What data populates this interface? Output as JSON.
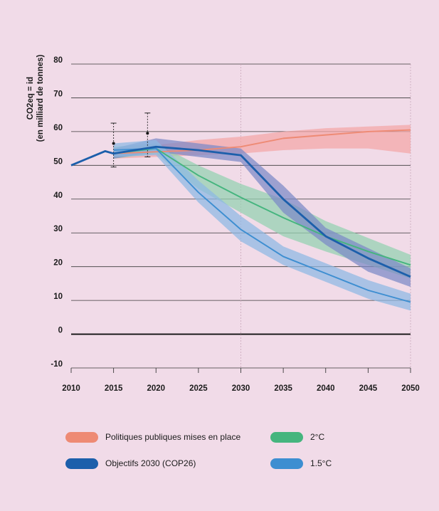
{
  "chart_data": {
    "type": "line",
    "ylabel": "CO2eq = id",
    "ylabel_sub": "(en milliard de tonnes)",
    "xlim": [
      2010,
      2050
    ],
    "ylim": [
      -10,
      80
    ],
    "x_ticks": [
      "2010",
      "2015",
      "2020",
      "2025",
      "2030",
      "2035",
      "2040",
      "2045",
      "2050"
    ],
    "y_ticks": [
      "80",
      "70",
      "60",
      "50",
      "40",
      "30",
      "20",
      "10",
      "0",
      "-10"
    ],
    "grid": "horizontal",
    "legend_position": "bottom",
    "series": [
      {
        "name": "Politiques publiques mises en place",
        "color": "#ee8a74",
        "band_color": "#f4a6a6",
        "points": [
          [
            2015,
            53.5
          ],
          [
            2020,
            54
          ],
          [
            2025,
            54.5
          ],
          [
            2030,
            55.5
          ],
          [
            2035,
            58
          ],
          [
            2040,
            59
          ],
          [
            2045,
            60
          ],
          [
            2050,
            60.5
          ]
        ],
        "band": [
          [
            2015,
            52,
            55
          ],
          [
            2020,
            52.5,
            56
          ],
          [
            2025,
            53,
            57.5
          ],
          [
            2030,
            53.5,
            58.5
          ],
          [
            2035,
            54.5,
            60
          ],
          [
            2040,
            55,
            61
          ],
          [
            2045,
            55,
            61.5
          ],
          [
            2050,
            53.5,
            62
          ]
        ]
      },
      {
        "name": "2°C",
        "color": "#45b57e",
        "band_color": "#93d1b0",
        "points": [
          [
            2015,
            53.5
          ],
          [
            2020,
            55
          ],
          [
            2025,
            47
          ],
          [
            2030,
            40.5
          ],
          [
            2035,
            34.5
          ],
          [
            2040,
            29
          ],
          [
            2045,
            24.5
          ],
          [
            2050,
            20.5
          ]
        ],
        "band": [
          [
            2015,
            52,
            55.5
          ],
          [
            2020,
            53.5,
            56.5
          ],
          [
            2025,
            43,
            50
          ],
          [
            2030,
            36,
            44.5
          ],
          [
            2035,
            29,
            40
          ],
          [
            2040,
            24.5,
            33.5
          ],
          [
            2045,
            20.5,
            28.5
          ],
          [
            2050,
            16.5,
            23.5
          ]
        ]
      },
      {
        "name": "Objectifs 2030 (COP26)",
        "color": "#1c5fab",
        "band_color": "#7b89c6",
        "points": [
          [
            2010,
            50
          ],
          [
            2014,
            54.2
          ],
          [
            2015,
            53.5
          ],
          [
            2020,
            55.5
          ],
          [
            2025,
            54.5
          ],
          [
            2030,
            53
          ],
          [
            2035,
            40
          ],
          [
            2040,
            29
          ],
          [
            2045,
            22.5
          ],
          [
            2050,
            17
          ]
        ],
        "band": [
          [
            2015,
            52,
            55
          ],
          [
            2020,
            54,
            58
          ],
          [
            2025,
            52.5,
            56.5
          ],
          [
            2030,
            51,
            55
          ],
          [
            2035,
            36,
            44
          ],
          [
            2040,
            26.5,
            31.5
          ],
          [
            2045,
            18.5,
            25.5
          ],
          [
            2050,
            14,
            19.5
          ]
        ]
      },
      {
        "name": "1.5°C",
        "color": "#3d8ed1",
        "band_color": "#8db9e3",
        "points": [
          [
            2015,
            54.5
          ],
          [
            2020,
            55
          ],
          [
            2025,
            42
          ],
          [
            2030,
            31
          ],
          [
            2035,
            23
          ],
          [
            2040,
            18
          ],
          [
            2045,
            13
          ],
          [
            2050,
            9.5
          ]
        ],
        "band": [
          [
            2015,
            52.5,
            56.5
          ],
          [
            2020,
            53,
            57.5
          ],
          [
            2025,
            39,
            45.5
          ],
          [
            2030,
            27.5,
            35
          ],
          [
            2035,
            20.5,
            26
          ],
          [
            2040,
            15.5,
            21
          ],
          [
            2045,
            10.5,
            16
          ],
          [
            2050,
            7,
            12
          ]
        ]
      }
    ],
    "error_bars": [
      {
        "x": 2015,
        "low": 49.5,
        "high": 62.5,
        "point": 56.5
      },
      {
        "x": 2019,
        "low": 52.5,
        "high": 65.5,
        "point": 59.5
      }
    ]
  }
}
